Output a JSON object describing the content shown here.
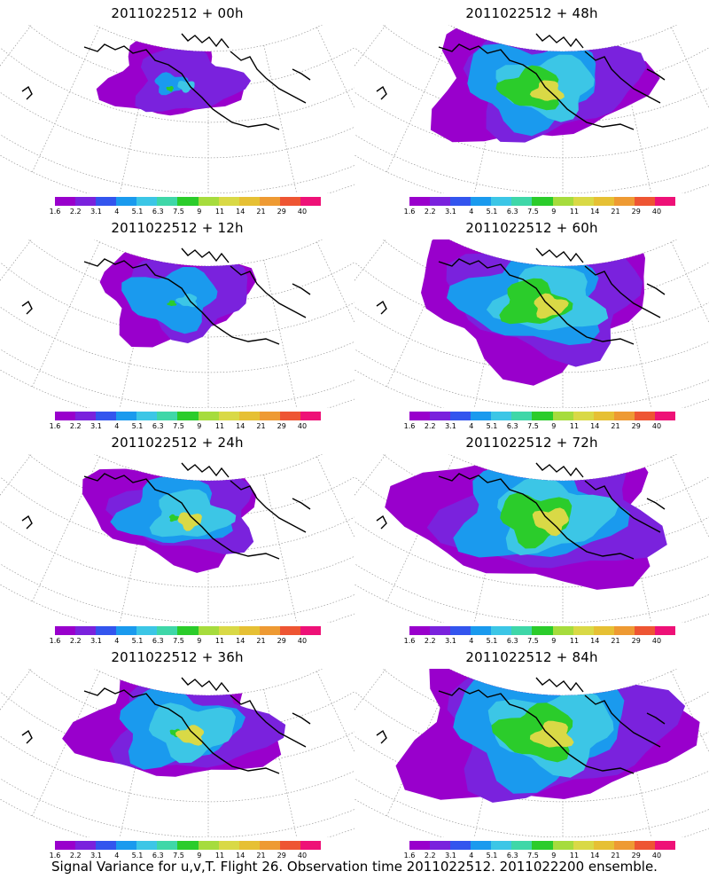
{
  "panels": [
    {
      "title": "2011022512 + 00h",
      "level": 0
    },
    {
      "title": "2011022512 + 48h",
      "level": 4
    },
    {
      "title": "2011022512 + 12h",
      "level": 1
    },
    {
      "title": "2011022512 + 60h",
      "level": 5
    },
    {
      "title": "2011022512 + 24h",
      "level": 2
    },
    {
      "title": "2011022512 + 72h",
      "level": 6
    },
    {
      "title": "2011022512 + 36h",
      "level": 3
    },
    {
      "title": "2011022512 + 84h",
      "level": 7
    }
  ],
  "colorbar": {
    "ticks": [
      "1.6",
      "2.2",
      "3.1",
      "4",
      "5.1",
      "6.3",
      "7.5",
      "9",
      "11",
      "14",
      "21",
      "29",
      "40"
    ],
    "colors": [
      "#9900cc",
      "#7a22dd",
      "#3355ee",
      "#1a9aee",
      "#3cc6e6",
      "#3fd7a8",
      "#2bcc2b",
      "#a6dc3d",
      "#d9d946",
      "#e6c034",
      "#ee9a33",
      "#ee5533",
      "#ee1177"
    ]
  },
  "caption": "Signal Variance for u,v,T. Flight 26. Observation time 2011022512. 2011022200 ensemble."
}
